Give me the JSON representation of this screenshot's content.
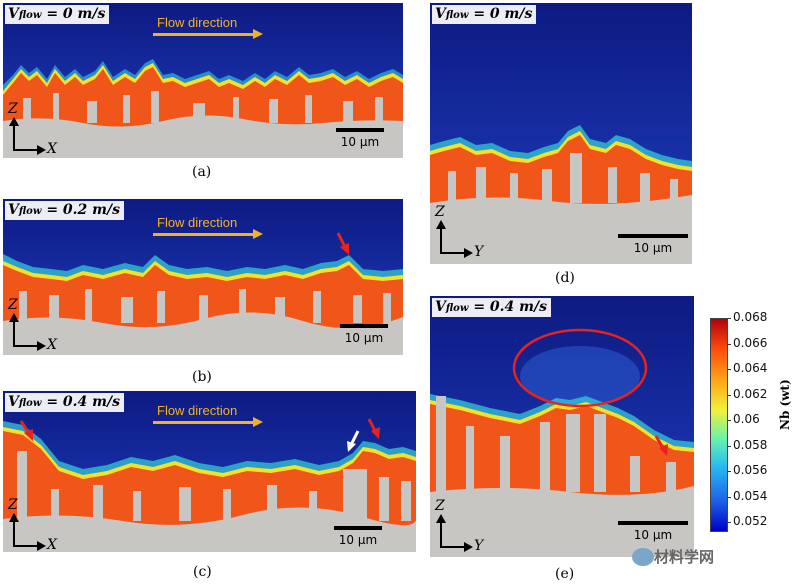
{
  "figure": {
    "panels": [
      {
        "id": "a",
        "velocity_text": "= 0 m/s",
        "flow_label": "Flow direction",
        "axis_v": "Z",
        "axis_h": "X",
        "scale_label": "10 μm",
        "caption": "(a)"
      },
      {
        "id": "b",
        "velocity_text": "= 0.2 m/s",
        "flow_label": "Flow direction",
        "axis_v": "Z",
        "axis_h": "X",
        "scale_label": "10 μm",
        "caption": "(b)"
      },
      {
        "id": "c",
        "velocity_text": "= 0.4 m/s",
        "flow_label": "Flow direction",
        "axis_v": "Z",
        "axis_h": "X",
        "scale_label": "10 μm",
        "caption": "(c)"
      },
      {
        "id": "d",
        "velocity_text": "= 0 m/s",
        "axis_v": "Z",
        "axis_h": "Y",
        "scale_label": "10 μm",
        "caption": "(d)"
      },
      {
        "id": "e",
        "velocity_text": "= 0.4 m/s",
        "axis_v": "Z",
        "axis_h": "Y",
        "scale_label": "10 μm",
        "caption": "(e)"
      }
    ],
    "v_symbol": "V",
    "v_subscript": "flow",
    "colorbar": {
      "title": "Nb (wt)",
      "ticks": [
        "0.068",
        "0.066",
        "0.064",
        "0.062",
        "0.06",
        "0.058",
        "0.056",
        "0.054",
        "0.052"
      ]
    },
    "watermark": "材料学网",
    "colors": {
      "flow_arrow": "#f5b21c",
      "annotation_red": "#e8231e",
      "annotation_white": "#ffffff",
      "background_blue": "#1a2b9c",
      "substrate": "#c8c6c2"
    }
  }
}
